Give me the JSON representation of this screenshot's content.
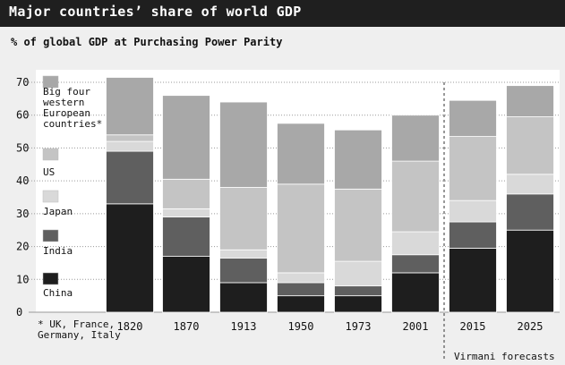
{
  "title": "Major countries’ share of world GDP",
  "subtitle": "% of global GDP at Purchasing Power Parity",
  "chart_data": {
    "type": "bar",
    "stacked": true,
    "title": "Major countries’ share of world GDP",
    "subtitle": "% of global GDP at Purchasing Power Parity",
    "categories": [
      "1820",
      "1870",
      "1913",
      "1950",
      "1973",
      "2001",
      "2015",
      "2025"
    ],
    "series": [
      {
        "name": "China",
        "color": "#1e1e1e",
        "values": [
          33,
          17,
          9,
          5,
          5,
          12,
          19.5,
          25
        ]
      },
      {
        "name": "India",
        "color": "#5f5f5f",
        "values": [
          16,
          12,
          7.5,
          4,
          3,
          5.5,
          8,
          11
        ]
      },
      {
        "name": "Japan",
        "color": "#d9d9d9",
        "values": [
          3,
          2.5,
          2.5,
          3,
          7.5,
          7,
          6.5,
          6
        ]
      },
      {
        "name": "US",
        "color": "#c4c4c4",
        "values": [
          2,
          9,
          19,
          27,
          22,
          21.5,
          19.5,
          17.5
        ]
      },
      {
        "name": "Big four western European countries*",
        "color": "#a8a8a8",
        "values": [
          17.5,
          25.5,
          26,
          18.5,
          18,
          14,
          11,
          9.5
        ]
      }
    ],
    "legend": {
      "placement": "left-inside",
      "items": [
        {
          "series": "Big four western European countries*",
          "label_lines": [
            "Big four",
            "western",
            "European",
            "countries*"
          ]
        },
        {
          "series": "US",
          "label_lines": [
            "US"
          ]
        },
        {
          "series": "Japan",
          "label_lines": [
            "Japan"
          ]
        },
        {
          "series": "India",
          "label_lines": [
            "India"
          ]
        },
        {
          "series": "China",
          "label_lines": [
            "China"
          ]
        }
      ]
    },
    "footnote_lines": [
      "* UK, France,",
      "Germany, Italy"
    ],
    "forecast_label": "Virmani forecasts",
    "forecast_from_category": "2015",
    "ylim": [
      0,
      70
    ],
    "yticks": [
      0,
      10,
      20,
      30,
      40,
      50,
      60,
      70
    ],
    "grid": true,
    "xlabel": "",
    "ylabel": ""
  }
}
